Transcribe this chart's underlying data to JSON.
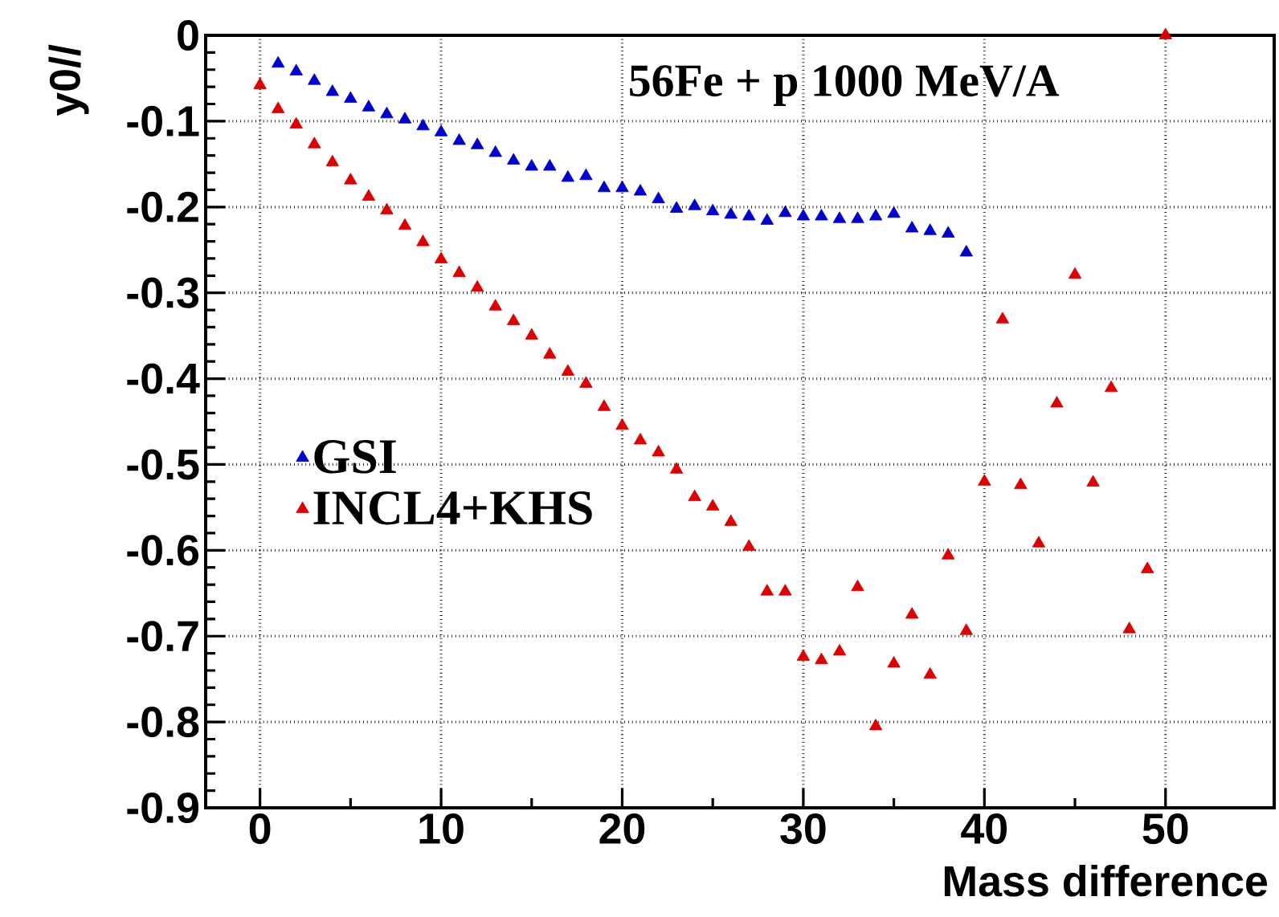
{
  "chart_data": {
    "type": "scatter",
    "xlabel": "Mass difference",
    "ylabel": "y0//",
    "annotations": [
      "56Fe + p 1000 MeV/A"
    ],
    "xlim": [
      -3,
      56
    ],
    "ylim": [
      -0.9,
      0
    ],
    "xticks": [
      0,
      10,
      20,
      30,
      40,
      50
    ],
    "yticks": [
      -0.9,
      -0.8,
      -0.7,
      -0.6,
      -0.5,
      -0.4,
      -0.3,
      -0.2,
      -0.1,
      0
    ],
    "grid": true,
    "legend": "left",
    "marker": "triangle",
    "series": [
      {
        "name": "GSI",
        "color": "#0000cc",
        "x": [
          1,
          2,
          3,
          4,
          5,
          6,
          7,
          8,
          9,
          10,
          11,
          12,
          13,
          14,
          15,
          16,
          17,
          18,
          19,
          20,
          21,
          22,
          23,
          24,
          25,
          26,
          27,
          28,
          29,
          30,
          31,
          32,
          33,
          34,
          35,
          36,
          37,
          38,
          39
        ],
        "values": [
          -0.033,
          -0.042,
          -0.053,
          -0.066,
          -0.074,
          -0.084,
          -0.092,
          -0.098,
          -0.106,
          -0.113,
          -0.123,
          -0.128,
          -0.137,
          -0.146,
          -0.153,
          -0.153,
          -0.166,
          -0.164,
          -0.178,
          -0.178,
          -0.182,
          -0.191,
          -0.202,
          -0.199,
          -0.205,
          -0.209,
          -0.211,
          -0.216,
          -0.207,
          -0.211,
          -0.211,
          -0.214,
          -0.214,
          -0.211,
          -0.208,
          -0.225,
          -0.228,
          -0.231,
          -0.253
        ]
      },
      {
        "name": "INCL4+KHS",
        "color": "#dd0000",
        "x": [
          0,
          1,
          2,
          3,
          4,
          5,
          6,
          7,
          8,
          9,
          10,
          11,
          12,
          13,
          14,
          15,
          16,
          17,
          18,
          19,
          20,
          21,
          22,
          23,
          24,
          25,
          26,
          27,
          28,
          29,
          30,
          31,
          32,
          33,
          34,
          35,
          36,
          37,
          38,
          39,
          40,
          41,
          42,
          43,
          44,
          45,
          46,
          47,
          48,
          49,
          50
        ],
        "values": [
          -0.058,
          -0.086,
          -0.104,
          -0.127,
          -0.148,
          -0.169,
          -0.188,
          -0.204,
          -0.222,
          -0.241,
          -0.261,
          -0.277,
          -0.294,
          -0.316,
          -0.333,
          -0.35,
          -0.372,
          -0.392,
          -0.406,
          -0.433,
          -0.455,
          -0.472,
          -0.486,
          -0.506,
          -0.538,
          -0.549,
          -0.567,
          -0.596,
          -0.648,
          -0.648,
          -0.724,
          -0.728,
          -0.718,
          -0.643,
          -0.805,
          -0.732,
          -0.675,
          -0.745,
          -0.606,
          -0.694,
          -0.52,
          -0.331,
          -0.524,
          -0.592,
          -0.429,
          -0.279,
          -0.521,
          -0.411,
          -0.692,
          -0.622,
          0
        ]
      }
    ]
  }
}
